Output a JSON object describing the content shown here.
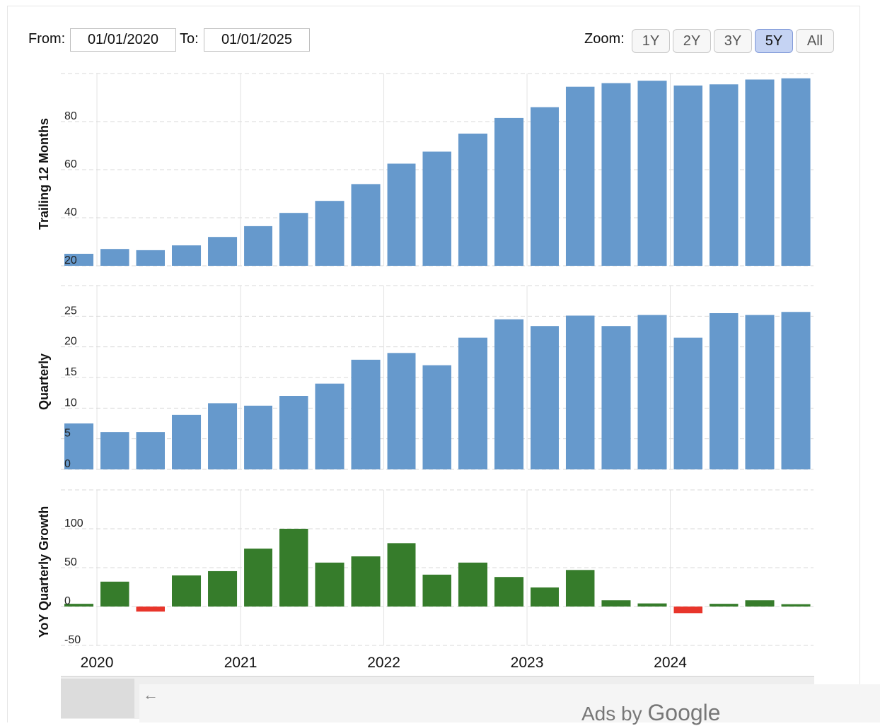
{
  "controls": {
    "from_label": "From:",
    "from_value": "01/01/2020",
    "to_label": "To:",
    "to_value": "01/01/2025",
    "zoom_label": "Zoom:",
    "zoom_options": [
      "1Y",
      "2Y",
      "3Y",
      "5Y",
      "All"
    ],
    "zoom_active": "5Y"
  },
  "colors": {
    "bar_blue": "#6699cc",
    "growth_positive": "#367c2b",
    "growth_negative": "#e8352b",
    "grid": "#d9d9d9"
  },
  "chart_data": [
    {
      "type": "bar",
      "ylabel": "Trailing 12 Months",
      "yticks": [
        20,
        40,
        60,
        80
      ],
      "ylim": [
        20,
        100
      ],
      "x": [
        "2019-10-01",
        "2020-01-01",
        "2020-04-01",
        "2020-07-01",
        "2020-10-01",
        "2021-01-01",
        "2021-04-01",
        "2021-07-01",
        "2021-10-01",
        "2022-01-01",
        "2022-04-01",
        "2022-07-01",
        "2022-10-01",
        "2023-01-01",
        "2023-04-01",
        "2023-07-01",
        "2023-10-01",
        "2024-01-01",
        "2024-04-01",
        "2024-07-01",
        "2024-10-01"
      ],
      "values": [
        25,
        27,
        26.5,
        28.5,
        32,
        36.5,
        42,
        47,
        54,
        62.5,
        67.5,
        75,
        81.5,
        86,
        94.5,
        96,
        97,
        95,
        95.5,
        97.5,
        98
      ],
      "grid": true
    },
    {
      "type": "bar",
      "ylabel": "Quarterly",
      "yticks": [
        0,
        5,
        10,
        15,
        20,
        25
      ],
      "ylim": [
        0,
        30
      ],
      "x": [
        "2019-10-01",
        "2020-01-01",
        "2020-04-01",
        "2020-07-01",
        "2020-10-01",
        "2021-01-01",
        "2021-04-01",
        "2021-07-01",
        "2021-10-01",
        "2022-01-01",
        "2022-04-01",
        "2022-07-01",
        "2022-10-01",
        "2023-01-01",
        "2023-04-01",
        "2023-07-01",
        "2023-10-01",
        "2024-01-01",
        "2024-04-01",
        "2024-07-01",
        "2024-10-01"
      ],
      "values": [
        7.5,
        6.1,
        6.1,
        8.9,
        10.8,
        10.4,
        12,
        14,
        17.9,
        19,
        17,
        21.5,
        24.5,
        23.4,
        25.1,
        23.4,
        25.2,
        21.5,
        25.5,
        25.2,
        25.7
      ],
      "grid": true
    },
    {
      "type": "bar",
      "ylabel": "YoY Quarterly Growth",
      "yticks": [
        -50,
        0,
        50,
        100
      ],
      "ylim": [
        -50,
        150
      ],
      "x": [
        "2019-10-01",
        "2020-01-01",
        "2020-04-01",
        "2020-07-01",
        "2020-10-01",
        "2021-01-01",
        "2021-04-01",
        "2021-07-01",
        "2021-10-01",
        "2022-01-01",
        "2022-04-01",
        "2022-07-01",
        "2022-10-01",
        "2023-01-01",
        "2023-04-01",
        "2023-07-01",
        "2023-10-01",
        "2024-01-01",
        "2024-04-01",
        "2024-07-01",
        "2024-10-01"
      ],
      "values": [
        3.5,
        32,
        -6.5,
        40,
        45.5,
        74.5,
        100,
        56.5,
        64.5,
        81.5,
        41,
        56.5,
        38,
        24.5,
        47,
        8,
        4,
        -8.5,
        3.5,
        8,
        3
      ],
      "xticks": [
        "2020",
        "2021",
        "2022",
        "2023",
        "2024"
      ],
      "grid": true
    }
  ],
  "ads": {
    "arrow": "←",
    "prefix": "Ads by ",
    "brand": "Google"
  }
}
